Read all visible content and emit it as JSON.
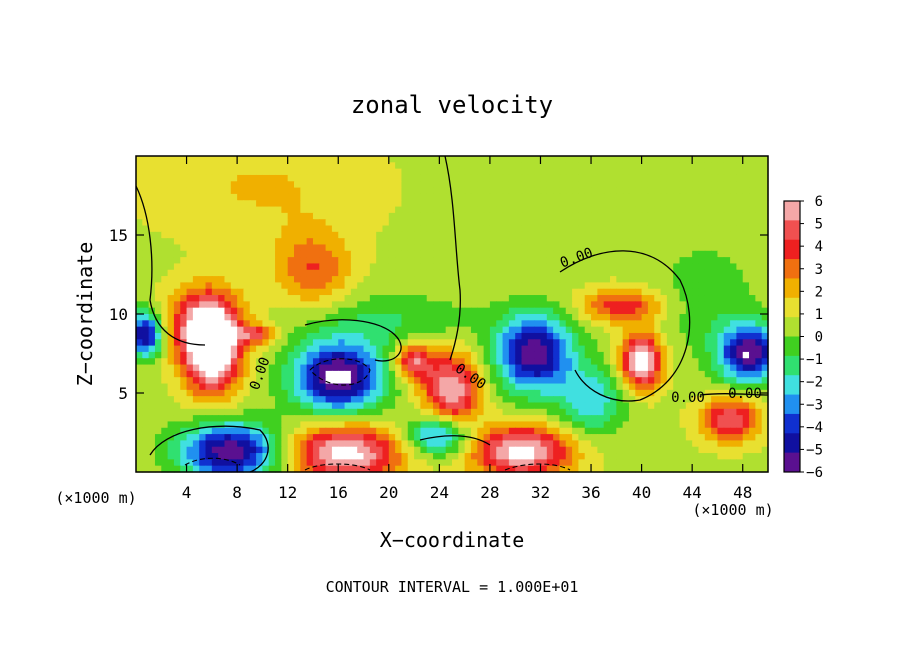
{
  "chart_data": {
    "type": "heatmap",
    "title": "zonal velocity",
    "xlabel": "X−coordinate",
    "ylabel": "Z−coordinate",
    "x_unit_left": "(×1000 m)",
    "x_unit_right": "(×1000 m)",
    "footer": "CONTOUR INTERVAL = 1.000E+01",
    "xlim": [
      0,
      50
    ],
    "ylim": [
      0,
      20
    ],
    "x_ticks": [
      4,
      8,
      12,
      16,
      20,
      24,
      28,
      32,
      36,
      40,
      44,
      48
    ],
    "y_ticks": [
      5,
      10,
      15
    ],
    "grid": false,
    "legend_position": "right",
    "colorbar": {
      "min": -6,
      "max": 6,
      "labels": [
        "6",
        "5",
        "4",
        "3",
        "2",
        "1",
        "0",
        "−1",
        "−2",
        "−3",
        "−4",
        "−5",
        "−6"
      ],
      "colors": [
        "#f4a7a7",
        "#f05050",
        "#ee2020",
        "#f07010",
        "#f0b000",
        "#e8e030",
        "#b0e030",
        "#40d020",
        "#30e070",
        "#40e0e0",
        "#2090f0",
        "#1030d0",
        "#1010a0",
        "#5a1090"
      ]
    },
    "contour_labels": [
      "0.00",
      "0.00",
      "0.00",
      "0.00",
      "0.00"
    ],
    "blobs": [
      {
        "x": 6,
        "y": 7.5,
        "rx": 2.2,
        "ry": 2.6,
        "v": 7
      },
      {
        "x": 5.5,
        "y": 9.5,
        "rx": 2.8,
        "ry": 2.2,
        "v": 4.5
      },
      {
        "x": 16,
        "y": 6,
        "rx": 3.5,
        "ry": 2.2,
        "v": -7
      },
      {
        "x": 16.5,
        "y": 1.2,
        "rx": 4.5,
        "ry": 1.8,
        "v": 6
      },
      {
        "x": 7.5,
        "y": 1.3,
        "rx": 4,
        "ry": 1.8,
        "v": -6.5
      },
      {
        "x": 25,
        "y": 5.2,
        "rx": 2.2,
        "ry": 2.3,
        "v": 5.5
      },
      {
        "x": 22,
        "y": 7,
        "rx": 1.5,
        "ry": 1.2,
        "v": 4.5
      },
      {
        "x": 24,
        "y": 2.3,
        "rx": 2.6,
        "ry": 1.3,
        "v": -4.5
      },
      {
        "x": 31.5,
        "y": 7.5,
        "rx": 3,
        "ry": 2.4,
        "v": -6.5
      },
      {
        "x": 30.5,
        "y": 1.3,
        "rx": 4,
        "ry": 1.6,
        "v": 6
      },
      {
        "x": 40,
        "y": 7,
        "rx": 1.6,
        "ry": 1.7,
        "v": 6.5
      },
      {
        "x": 38.5,
        "y": 10.5,
        "rx": 3.2,
        "ry": 1.1,
        "v": 3.5
      },
      {
        "x": 48.5,
        "y": 7.5,
        "rx": 2.4,
        "ry": 1.8,
        "v": -6.5
      },
      {
        "x": 47,
        "y": 3.3,
        "rx": 2.3,
        "ry": 1.4,
        "v": 4.5
      },
      {
        "x": 0.7,
        "y": 8.7,
        "rx": 1.3,
        "ry": 1.4,
        "v": -6
      },
      {
        "x": 14,
        "y": 12.8,
        "rx": 3,
        "ry": 2.4,
        "v": 2.8
      },
      {
        "x": 20,
        "y": 9.5,
        "rx": 7,
        "ry": 1.8,
        "v": -1.5
      },
      {
        "x": 36,
        "y": 4.5,
        "rx": 2.5,
        "ry": 2.2,
        "v": -3
      },
      {
        "x": 45,
        "y": 11,
        "rx": 4,
        "ry": 3.5,
        "v": -1.2
      },
      {
        "x": 10,
        "y": 18,
        "rx": 9,
        "ry": 3.5,
        "v": 1.2
      },
      {
        "x": 9.5,
        "y": 8.7,
        "rx": 1.5,
        "ry": 0.6,
        "v": 3.5
      }
    ]
  }
}
